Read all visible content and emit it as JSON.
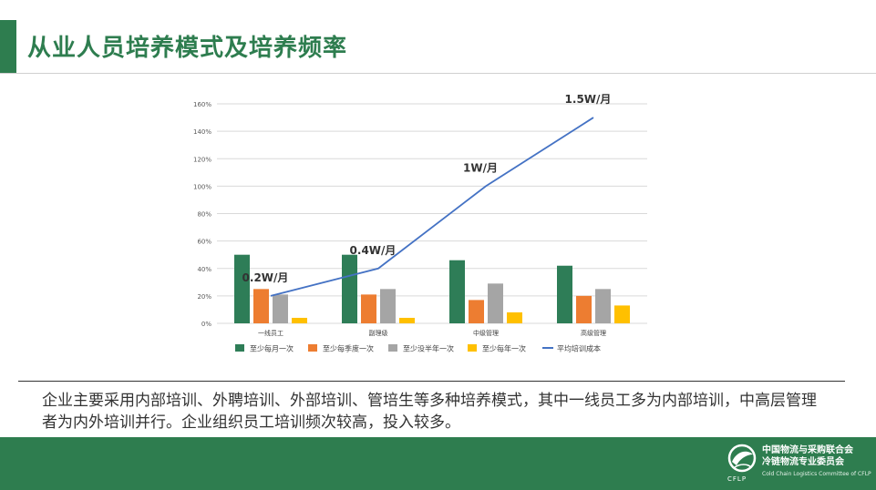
{
  "title": "从业人员培养模式及培养频率",
  "description": "企业主要采用内部培训、外聘培训、外部培训、管培生等多种培养模式，其中一线员工多为内部培训，中高层管理者为内外培训并行。企业组织员工培训频次较高，投入较多。",
  "organization": {
    "name_line1": "中国物流与采购联合会",
    "name_line2": "冷链物流专业委员会",
    "abbr": "CFLP",
    "english": "Cold Chain Logistics Committee of CFLP",
    "logo_icon": "globe-leaf-logo-icon"
  },
  "colors": {
    "brand_green": "#2e7d4f",
    "series_green": "#2e7d57",
    "series_orange": "#ed7d31",
    "series_gray": "#a5a5a5",
    "series_yellow": "#ffc000",
    "line_blue": "#4472c4"
  },
  "chart_data": {
    "type": "bar",
    "categories": [
      "一线员工",
      "副理级",
      "中级管理",
      "高级管理"
    ],
    "ylim": [
      0,
      1.6
    ],
    "yticks": [
      "0%",
      "20%",
      "40%",
      "60%",
      "80%",
      "100%",
      "120%",
      "140%",
      "160%"
    ],
    "series": [
      {
        "name": "至少每月一次",
        "type": "bar",
        "values": [
          0.5,
          0.5,
          0.46,
          0.42
        ],
        "color": "#2e7d57"
      },
      {
        "name": "至少每季度一次",
        "type": "bar",
        "values": [
          0.25,
          0.21,
          0.17,
          0.2
        ],
        "color": "#ed7d31"
      },
      {
        "name": "至少没半年一次",
        "type": "bar",
        "values": [
          0.21,
          0.25,
          0.29,
          0.25
        ],
        "color": "#a5a5a5"
      },
      {
        "name": "至少每年一次",
        "type": "bar",
        "values": [
          0.04,
          0.04,
          0.08,
          0.13
        ],
        "color": "#ffc000"
      },
      {
        "name": "平均培训成本",
        "type": "line",
        "values": [
          0.2,
          0.4,
          1.0,
          1.5
        ],
        "color": "#4472c4"
      }
    ],
    "annotations": [
      "0.2W/月",
      "0.4W/月",
      "1W/月",
      "1.5W/月"
    ],
    "grid": true,
    "legend": "bottom"
  }
}
